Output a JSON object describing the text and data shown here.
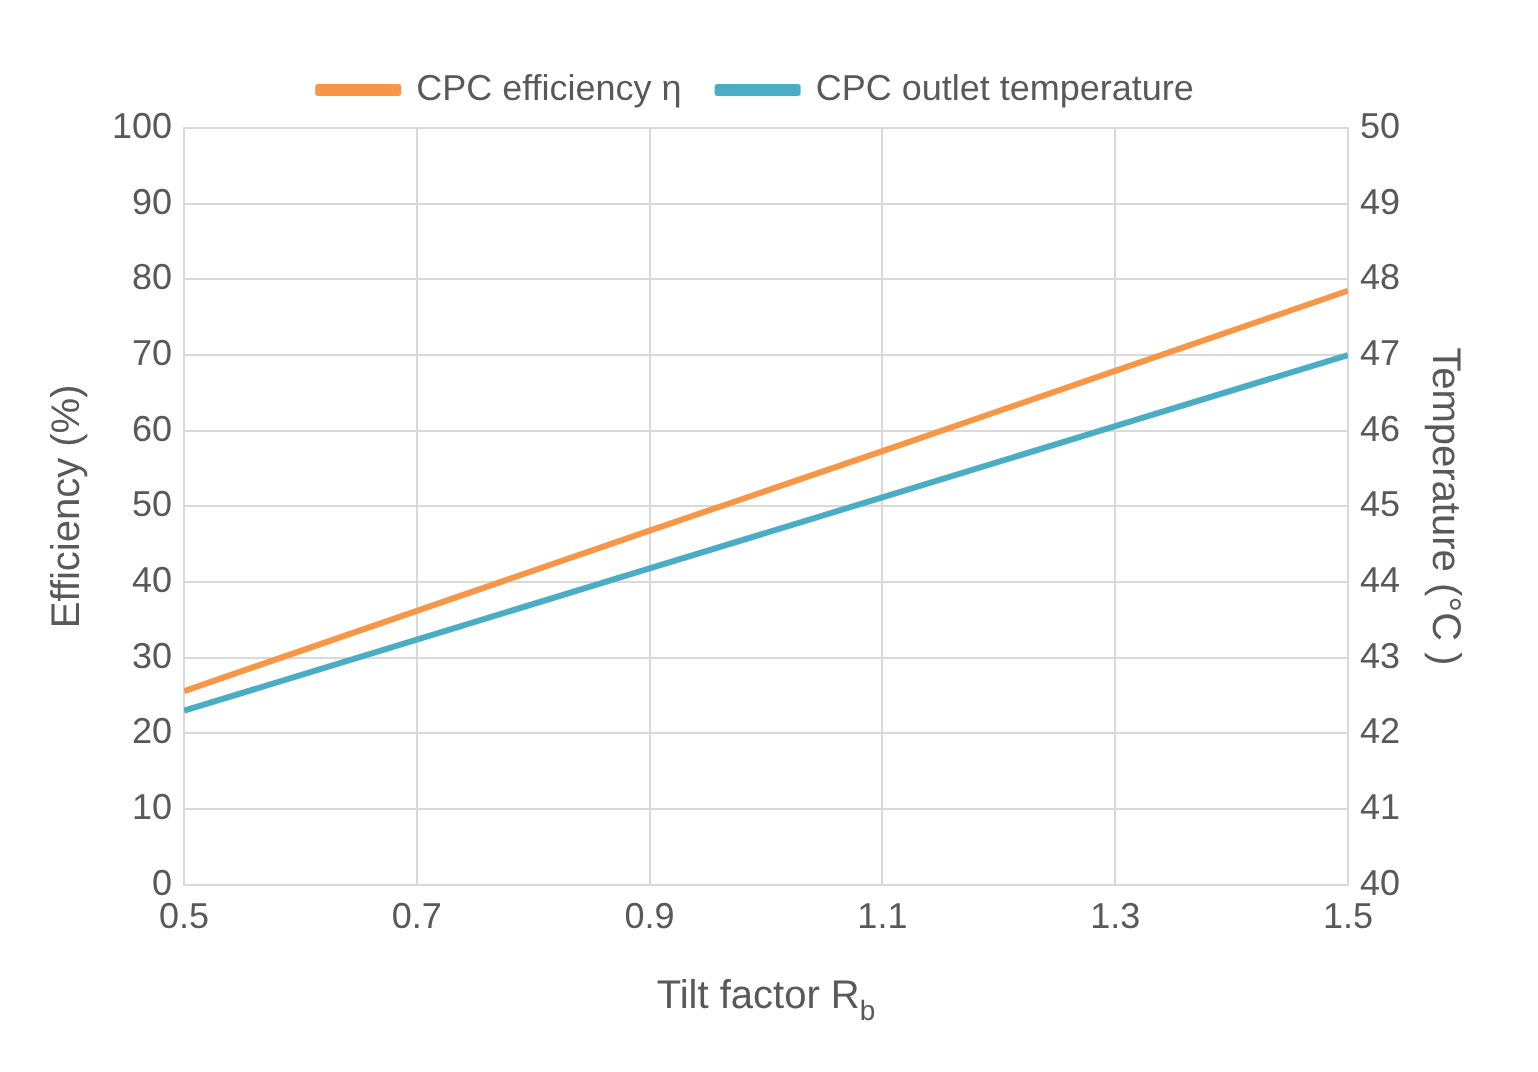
{
  "chart_data": {
    "type": "line",
    "xlabel": "Tilt factor R$_{b}$",
    "ylabel": "Efficiency (%)",
    "y2label": "Temperature (°C )",
    "x": [
      0.5,
      0.7,
      0.9,
      1.1,
      1.3,
      1.5
    ],
    "series": [
      {
        "name": "CPC efficiency η",
        "color": "#f79646",
        "values": [
          25.6,
          36.2,
          46.8,
          57.3,
          67.9,
          78.5
        ]
      },
      {
        "name": "CPC outlet temperature",
        "color": "#4bacc6",
        "axis": "y2",
        "values": [
          42.3,
          43.24,
          44.18,
          45.12,
          46.06,
          47.0
        ]
      }
    ],
    "xlim": [
      0.5,
      1.5
    ],
    "xticks": [
      {
        "value": 0.5,
        "label": "0.5"
      },
      {
        "value": 0.7,
        "label": "0.7"
      },
      {
        "value": 0.9,
        "label": "0.9"
      },
      {
        "value": 1.1,
        "label": "1.1"
      },
      {
        "value": 1.3,
        "label": "1.3"
      },
      {
        "value": 1.5,
        "label": "1.5"
      }
    ],
    "ylim": [
      0,
      100
    ],
    "yticks": [
      0,
      10,
      20,
      30,
      40,
      50,
      60,
      70,
      80,
      90,
      100
    ],
    "y2lim": [
      40,
      50
    ],
    "y2ticks": [
      40,
      41,
      42,
      43,
      44,
      45,
      46,
      47,
      48,
      49,
      50
    ],
    "grid": true,
    "legend": "top",
    "marker": "none",
    "line_style": "solid"
  }
}
